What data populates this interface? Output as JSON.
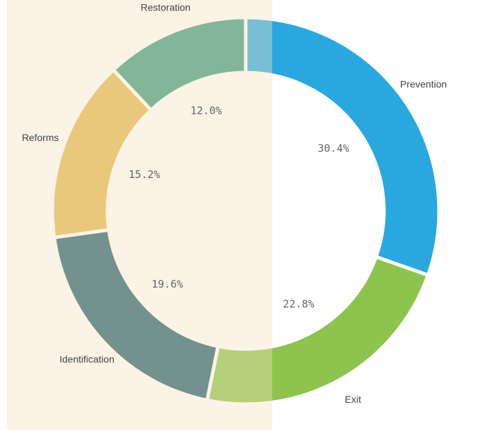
{
  "chart_data": {
    "type": "donut",
    "categories": [
      "Prevention",
      "Exit",
      "Identification",
      "Reforms",
      "Restoration"
    ],
    "values": [
      30.4,
      22.8,
      19.6,
      15.2,
      12.0
    ],
    "value_labels": [
      "30.4%",
      "22.8%",
      "19.6%",
      "15.2%",
      "12.0%"
    ],
    "colors": [
      "#29a8e0",
      "#8dc44e",
      "#1f5c6b",
      "#e3b84e",
      "#3a9a7d"
    ]
  }
}
